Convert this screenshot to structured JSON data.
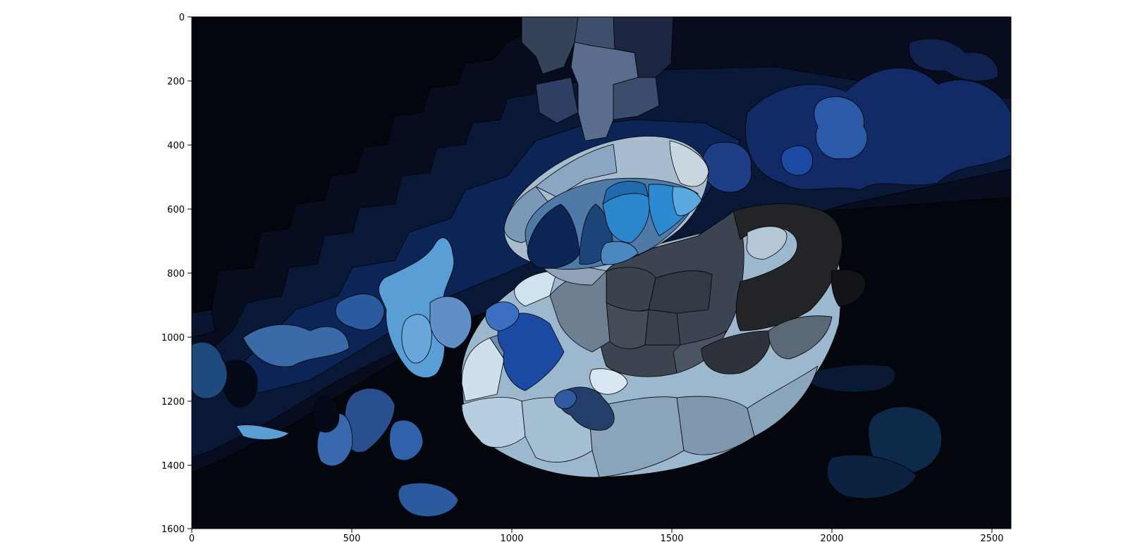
{
  "image": {
    "extent": {
      "x": [
        0,
        2560
      ],
      "y": [
        1600,
        0
      ]
    },
    "y_axis_inverted": true,
    "content": "segmented / superpixel-colored image of a cup and saucer in blue and gray tones on a dark background",
    "colors": {
      "background": "#03060d",
      "dark_blue": "#0a1838",
      "navy": "#0d2456",
      "mid_blue": "#2a4f8f",
      "royal_blue": "#1b4aa3",
      "light_blue": "#5a9ed6",
      "bright_blue": "#2b86cc",
      "pale_blue": "#c9dcea",
      "steel": "#6f8ea8",
      "gray_blue": "#8aa4ba",
      "charcoal": "#2e333b",
      "slate": "#3b4450"
    }
  },
  "axes": {
    "x_ticks": [
      "0",
      "500",
      "1000",
      "1500",
      "2000",
      "2500"
    ],
    "y_ticks": [
      "0",
      "200",
      "400",
      "600",
      "800",
      "1000",
      "1200",
      "1400",
      "1600"
    ]
  }
}
